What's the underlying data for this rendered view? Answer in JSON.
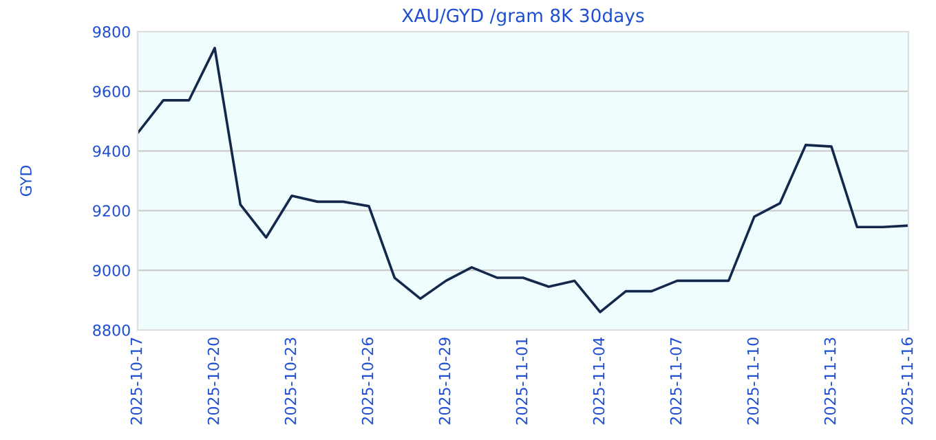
{
  "chart_data": {
    "type": "line",
    "title": "XAU/GYD /gram 8K 30days",
    "ylabel": "GYD",
    "x": [
      "2025-10-17",
      "2025-10-18",
      "2025-10-19",
      "2025-10-20",
      "2025-10-21",
      "2025-10-22",
      "2025-10-23",
      "2025-10-24",
      "2025-10-25",
      "2025-10-26",
      "2025-10-27",
      "2025-10-28",
      "2025-10-29",
      "2025-10-30",
      "2025-10-31",
      "2025-11-01",
      "2025-11-02",
      "2025-11-03",
      "2025-11-04",
      "2025-11-05",
      "2025-11-06",
      "2025-11-07",
      "2025-11-08",
      "2025-11-09",
      "2025-11-10",
      "2025-11-11",
      "2025-11-12",
      "2025-11-13",
      "2025-11-14",
      "2025-11-15",
      "2025-11-16"
    ],
    "series": [
      {
        "color": "#14284b",
        "values": [
          9460,
          9570,
          9570,
          9745,
          9220,
          9110,
          9250,
          9230,
          9230,
          9215,
          8975,
          8905,
          8965,
          9010,
          8975,
          8975,
          8945,
          8965,
          8860,
          8930,
          8930,
          8965,
          8965,
          8965,
          9180,
          9225,
          9420,
          9415,
          9145,
          9145,
          9150
        ]
      }
    ],
    "xlim": [
      "2025-10-17",
      "2025-11-16"
    ],
    "xticks": [
      "2025-10-17",
      "2025-10-20",
      "2025-10-23",
      "2025-10-26",
      "2025-10-29",
      "2025-11-01",
      "2025-11-04",
      "2025-11-07",
      "2025-11-10",
      "2025-11-13",
      "2025-11-16"
    ],
    "ylim": [
      8800,
      9800
    ],
    "yticks": [
      8800,
      9000,
      9200,
      9400,
      9600,
      9800
    ],
    "grid": "y",
    "legend": false,
    "marker": "none",
    "line_style": "solid"
  }
}
